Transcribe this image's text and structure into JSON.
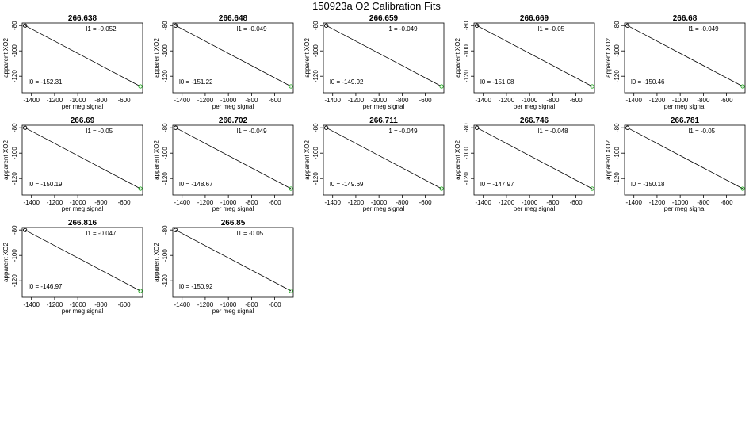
{
  "figure": {
    "title": "150923a   O2 Calibration Fits"
  },
  "chart_data": {
    "type": "scatter",
    "title": "150923a   O2 Calibration Fits",
    "xlabel": "per meg signal",
    "ylabel": "apparent XO2",
    "xlim": [
      -1480,
      -440
    ],
    "ylim": [
      -133,
      -78
    ],
    "x_ticks": [
      -1400,
      -1200,
      -1000,
      -800,
      -600
    ],
    "y_ticks": [
      -80,
      -100,
      -120
    ],
    "x_tick_labels": [
      "-1400",
      "-1200",
      "-1000",
      "-800",
      "-600"
    ],
    "y_tick_labels": [
      "-80",
      "-100",
      "-120"
    ],
    "grid": false,
    "colors": {
      "fit_line": "#000000",
      "low_point": "#000000",
      "high_point": "#22aa22"
    },
    "panels": [
      {
        "title": "266.638",
        "l1_label": "l1 =  -0.052",
        "l0_label": "l0 =  -152.31",
        "points": [
          {
            "x": -1455,
            "y": -80
          },
          {
            "x": -460,
            "y": -128
          }
        ]
      },
      {
        "title": "266.648",
        "l1_label": "l1 =  -0.049",
        "l0_label": "l0 =  -151.22",
        "points": [
          {
            "x": -1455,
            "y": -80
          },
          {
            "x": -460,
            "y": -128
          }
        ]
      },
      {
        "title": "266.659",
        "l1_label": "l1 =  -0.049",
        "l0_label": "l0 =  -149.92",
        "points": [
          {
            "x": -1455,
            "y": -80
          },
          {
            "x": -460,
            "y": -128
          }
        ]
      },
      {
        "title": "266.669",
        "l1_label": "l1 =  -0.05",
        "l0_label": "l0 =  -151.08",
        "points": [
          {
            "x": -1455,
            "y": -80
          },
          {
            "x": -460,
            "y": -128
          }
        ]
      },
      {
        "title": "266.68",
        "l1_label": "l1 =  -0.049",
        "l0_label": "l0 =  -150.46",
        "points": [
          {
            "x": -1455,
            "y": -80
          },
          {
            "x": -460,
            "y": -128
          }
        ]
      },
      {
        "title": "266.69",
        "l1_label": "l1 =  -0.05",
        "l0_label": "l0 =  -150.19",
        "points": [
          {
            "x": -1455,
            "y": -80
          },
          {
            "x": -460,
            "y": -128
          }
        ]
      },
      {
        "title": "266.702",
        "l1_label": "l1 =  -0.049",
        "l0_label": "l0 =  -148.67",
        "points": [
          {
            "x": -1455,
            "y": -80
          },
          {
            "x": -460,
            "y": -128
          }
        ]
      },
      {
        "title": "266.711",
        "l1_label": "l1 =  -0.049",
        "l0_label": "l0 =  -149.69",
        "points": [
          {
            "x": -1455,
            "y": -80
          },
          {
            "x": -460,
            "y": -128
          }
        ]
      },
      {
        "title": "266.746",
        "l1_label": "l1 =  -0.048",
        "l0_label": "l0 =  -147.97",
        "points": [
          {
            "x": -1455,
            "y": -80
          },
          {
            "x": -460,
            "y": -128
          }
        ]
      },
      {
        "title": "266.781",
        "l1_label": "l1 =  -0.05",
        "l0_label": "l0 =  -150.18",
        "points": [
          {
            "x": -1455,
            "y": -80
          },
          {
            "x": -460,
            "y": -128
          }
        ]
      },
      {
        "title": "266.816",
        "l1_label": "l1 =  -0.047",
        "l0_label": "l0 =  -146.97",
        "points": [
          {
            "x": -1455,
            "y": -80
          },
          {
            "x": -460,
            "y": -128
          }
        ]
      },
      {
        "title": "266.85",
        "l1_label": "l1 =  -0.05",
        "l0_label": "l0 =  -150.92",
        "points": [
          {
            "x": -1455,
            "y": -80
          },
          {
            "x": -460,
            "y": -128
          }
        ]
      }
    ]
  }
}
